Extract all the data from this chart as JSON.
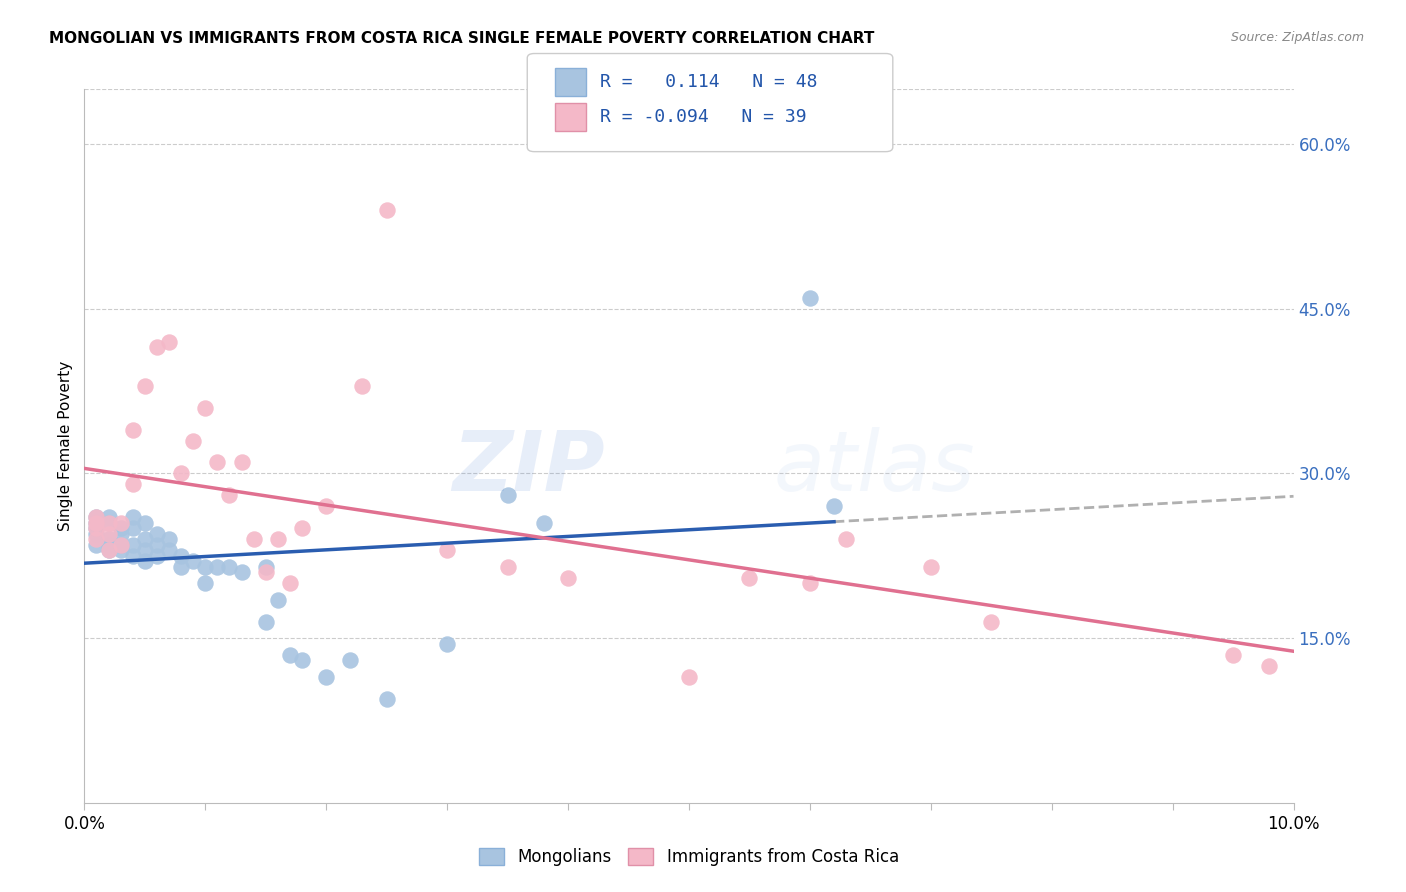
{
  "title": "MONGOLIAN VS IMMIGRANTS FROM COSTA RICA SINGLE FEMALE POVERTY CORRELATION CHART",
  "source": "Source: ZipAtlas.com",
  "ylabel": "Single Female Poverty",
  "legend_label1": "Mongolians",
  "legend_label2": "Immigrants from Costa Rica",
  "r1": 0.114,
  "n1": 48,
  "r2": -0.094,
  "n2": 39,
  "color1": "#a8c4e0",
  "color2": "#f4b8c8",
  "line_color1": "#2a5db0",
  "line_color2": "#e07090",
  "dashed_line_color": "#b0b0b0",
  "xlim": [
    0.0,
    0.1
  ],
  "ylim": [
    0.0,
    0.65
  ],
  "yticks": [
    0.15,
    0.3,
    0.45,
    0.6
  ],
  "ytick_labels": [
    "15.0%",
    "30.0%",
    "45.0%",
    "60.0%"
  ],
  "mongolian_x": [
    0.001,
    0.001,
    0.001,
    0.001,
    0.001,
    0.002,
    0.002,
    0.002,
    0.002,
    0.002,
    0.003,
    0.003,
    0.003,
    0.003,
    0.004,
    0.004,
    0.004,
    0.004,
    0.005,
    0.005,
    0.005,
    0.005,
    0.006,
    0.006,
    0.006,
    0.007,
    0.007,
    0.008,
    0.008,
    0.009,
    0.01,
    0.01,
    0.011,
    0.012,
    0.013,
    0.015,
    0.015,
    0.016,
    0.017,
    0.018,
    0.02,
    0.022,
    0.025,
    0.03,
    0.035,
    0.038,
    0.06,
    0.062
  ],
  "mongolian_y": [
    0.235,
    0.245,
    0.25,
    0.255,
    0.26,
    0.23,
    0.235,
    0.24,
    0.255,
    0.26,
    0.23,
    0.235,
    0.245,
    0.25,
    0.225,
    0.235,
    0.25,
    0.26,
    0.22,
    0.23,
    0.24,
    0.255,
    0.225,
    0.235,
    0.245,
    0.23,
    0.24,
    0.215,
    0.225,
    0.22,
    0.2,
    0.215,
    0.215,
    0.215,
    0.21,
    0.215,
    0.165,
    0.185,
    0.135,
    0.13,
    0.115,
    0.13,
    0.095,
    0.145,
    0.28,
    0.255,
    0.46,
    0.27
  ],
  "costarica_x": [
    0.001,
    0.001,
    0.001,
    0.001,
    0.002,
    0.002,
    0.002,
    0.003,
    0.003,
    0.004,
    0.004,
    0.005,
    0.006,
    0.007,
    0.008,
    0.009,
    0.01,
    0.011,
    0.012,
    0.013,
    0.014,
    0.015,
    0.016,
    0.017,
    0.018,
    0.02,
    0.023,
    0.025,
    0.03,
    0.035,
    0.04,
    0.05,
    0.055,
    0.06,
    0.063,
    0.07,
    0.075,
    0.095,
    0.098
  ],
  "costarica_y": [
    0.24,
    0.25,
    0.255,
    0.26,
    0.23,
    0.245,
    0.255,
    0.235,
    0.255,
    0.29,
    0.34,
    0.38,
    0.415,
    0.42,
    0.3,
    0.33,
    0.36,
    0.31,
    0.28,
    0.31,
    0.24,
    0.21,
    0.24,
    0.2,
    0.25,
    0.27,
    0.38,
    0.54,
    0.23,
    0.215,
    0.205,
    0.115,
    0.205,
    0.2,
    0.24,
    0.215,
    0.165,
    0.135,
    0.125
  ],
  "background_color": "#ffffff",
  "grid_color": "#cccccc"
}
